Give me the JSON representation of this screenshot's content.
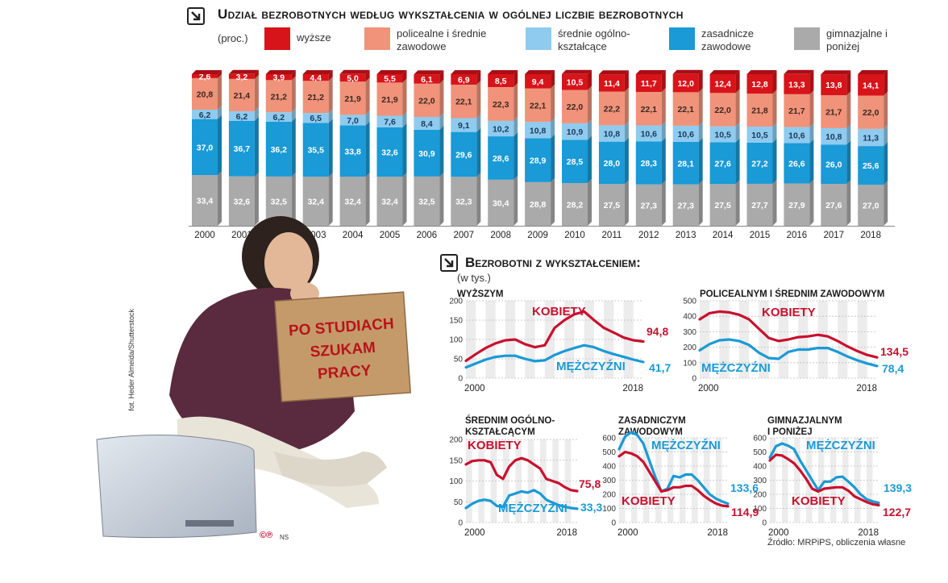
{
  "title": "Udział bezrobotnych według wykształcenia w ogólnej liczbie bezrobotnych",
  "unit": "(proc.)",
  "legend": [
    {
      "label": "wyższe",
      "color": "#d7141a"
    },
    {
      "label": "policealne i średnie zawodowe",
      "color": "#f0937a"
    },
    {
      "label": "średnie ogólno-kształcące",
      "color": "#8ecbef"
    },
    {
      "label": "zasadnicze zawodowe",
      "color": "#1a9ad6"
    },
    {
      "label": "gimnazjalne i poniżej",
      "color": "#aaaaaa"
    }
  ],
  "section2": {
    "title": "Bezrobotni z wykształceniem:",
    "unit": "(w tys.)"
  },
  "chart_data": [
    {
      "type": "bar",
      "stacked": true,
      "categories": [
        "2000",
        "2001",
        "2002",
        "2003",
        "2004",
        "2005",
        "2006",
        "2007",
        "2008",
        "2009",
        "2010",
        "2011",
        "2012",
        "2013",
        "2014",
        "2015",
        "2016",
        "2017",
        "2018"
      ],
      "series": [
        {
          "name": "gimnazjalne i poniżej",
          "color": "#aaaaaa",
          "values": [
            33.4,
            32.6,
            32.5,
            32.4,
            32.4,
            32.4,
            32.5,
            32.3,
            30.4,
            28.8,
            28.2,
            27.5,
            27.3,
            27.3,
            27.5,
            27.7,
            27.9,
            27.6,
            27.0
          ]
        },
        {
          "name": "zasadnicze zawodowe",
          "color": "#1a9ad6",
          "values": [
            37.0,
            36.7,
            36.2,
            35.5,
            33.8,
            32.6,
            30.9,
            29.6,
            28.6,
            28.9,
            28.5,
            28.0,
            28.3,
            28.1,
            27.6,
            27.2,
            26.6,
            26.0,
            25.6
          ]
        },
        {
          "name": "średnie ogólno-kształcące",
          "color": "#8ecbef",
          "values": [
            6.2,
            6.2,
            6.2,
            6.5,
            7.0,
            7.6,
            8.4,
            9.1,
            10.2,
            10.8,
            10.9,
            10.8,
            10.6,
            10.6,
            10.5,
            10.5,
            10.6,
            10.8,
            11.3
          ]
        },
        {
          "name": "policealne i średnie zawodowe",
          "color": "#f0937a",
          "values": [
            20.8,
            21.4,
            21.2,
            21.2,
            21.9,
            21.9,
            22.0,
            22.1,
            22.3,
            22.1,
            22.0,
            22.2,
            22.1,
            22.1,
            22.0,
            21.8,
            21.7,
            21.7,
            22.0
          ]
        },
        {
          "name": "wyższe",
          "color": "#d7141a",
          "values": [
            2.6,
            3.2,
            3.9,
            4.4,
            5.0,
            5.5,
            6.1,
            6.9,
            8.5,
            9.4,
            10.5,
            11.4,
            11.7,
            12.0,
            12.4,
            12.8,
            13.3,
            13.8,
            14.1
          ]
        }
      ],
      "value_labels": [
        [
          "33,4",
          "32,6",
          "32,5",
          "32,4",
          "32,4",
          "32,4",
          "32,5",
          "32,3",
          "30,4",
          "28,8",
          "28,2",
          "27,5",
          "27,3",
          "27,3",
          "27,5",
          "27,7",
          "27,9",
          "27,6",
          "27,0"
        ],
        [
          "37,0",
          "36,7",
          "36,2",
          "35,5",
          "33,8",
          "32,6",
          "30,9",
          "29,6",
          "28,6",
          "28,9",
          "28,5",
          "28,0",
          "28,3",
          "28,1",
          "27,6",
          "27,2",
          "26,6",
          "26,0",
          "25,6"
        ],
        [
          "6,2",
          "6,2",
          "6,2",
          "6,5",
          "7,0",
          "7,6",
          "8,4",
          "9,1",
          "10,2",
          "10,8",
          "10,9",
          "10,8",
          "10,6",
          "10,6",
          "10,5",
          "10,5",
          "10,6",
          "10,8",
          "11,3"
        ],
        [
          "20,8",
          "21,4",
          "21,2",
          "21,2",
          "21,9",
          "21,9",
          "22,0",
          "22,1",
          "22,3",
          "22,1",
          "22,0",
          "22,2",
          "22,1",
          "22,1",
          "22,0",
          "21,8",
          "21,7",
          "21,7",
          "22,0"
        ],
        [
          "2,6",
          "3,2",
          "3,9",
          "4,4",
          "5,0",
          "5,5",
          "6,1",
          "6,9",
          "8,5",
          "9,4",
          "10,5",
          "11,4",
          "11,7",
          "12,0",
          "12,4",
          "12,8",
          "13,3",
          "13,8",
          "14,1"
        ]
      ]
    },
    {
      "type": "line",
      "title": "wyższym",
      "ylim": [
        0,
        200
      ],
      "yticks": [
        0,
        50,
        100,
        150,
        200
      ],
      "x": [
        2000,
        2001,
        2002,
        2003,
        2004,
        2005,
        2006,
        2007,
        2008,
        2009,
        2010,
        2011,
        2012,
        2013,
        2014,
        2015,
        2016,
        2017,
        2018
      ],
      "xtick_labels": [
        "2000",
        "2018"
      ],
      "series": [
        {
          "name": "Kobiety",
          "color": "#c8102e",
          "values": [
            45,
            62,
            78,
            90,
            98,
            100,
            88,
            80,
            85,
            130,
            150,
            165,
            172,
            150,
            130,
            118,
            105,
            98,
            94.8
          ],
          "end_label": "94,8"
        },
        {
          "name": "Mężczyźni",
          "color": "#1a9ad6",
          "values": [
            28,
            38,
            48,
            55,
            58,
            58,
            50,
            44,
            46,
            60,
            70,
            78,
            85,
            80,
            70,
            62,
            55,
            48,
            41.7
          ],
          "end_label": "41,7"
        }
      ]
    },
    {
      "type": "line",
      "title": "policealnym i średnim zawodowym",
      "ylim": [
        0,
        500
      ],
      "yticks": [
        0,
        100,
        200,
        300,
        400,
        500
      ],
      "x": [
        2000,
        2001,
        2002,
        2003,
        2004,
        2005,
        2006,
        2007,
        2008,
        2009,
        2010,
        2011,
        2012,
        2013,
        2014,
        2015,
        2016,
        2017,
        2018
      ],
      "xtick_labels": [
        "2000",
        "2018"
      ],
      "series": [
        {
          "name": "Kobiety",
          "color": "#c8102e",
          "values": [
            380,
            420,
            430,
            425,
            410,
            380,
            320,
            260,
            240,
            250,
            265,
            270,
            280,
            270,
            240,
            205,
            175,
            150,
            134.5
          ],
          "end_label": "134,5"
        },
        {
          "name": "Mężczyźni",
          "color": "#1a9ad6",
          "values": [
            180,
            220,
            245,
            250,
            240,
            215,
            165,
            130,
            125,
            170,
            185,
            185,
            195,
            195,
            170,
            140,
            115,
            95,
            78.4
          ],
          "end_label": "78,4"
        }
      ]
    },
    {
      "type": "line",
      "title": "średnim ogólno-kształcącym",
      "ylim": [
        0,
        200
      ],
      "yticks": [
        0,
        50,
        100,
        150,
        200
      ],
      "x": [
        2000,
        2001,
        2002,
        2003,
        2004,
        2005,
        2006,
        2007,
        2008,
        2009,
        2010,
        2011,
        2012,
        2013,
        2014,
        2015,
        2016,
        2017,
        2018
      ],
      "xtick_labels": [
        "2000",
        "2018"
      ],
      "series": [
        {
          "name": "Kobiety",
          "color": "#c8102e",
          "values": [
            140,
            148,
            150,
            150,
            145,
            115,
            105,
            135,
            150,
            155,
            150,
            140,
            130,
            105,
            100,
            95,
            85,
            78,
            75.8
          ],
          "end_label": "75,8"
        },
        {
          "name": "Mężczyźni",
          "color": "#1a9ad6",
          "values": [
            35,
            45,
            52,
            55,
            52,
            40,
            38,
            65,
            70,
            75,
            72,
            78,
            70,
            55,
            48,
            42,
            38,
            35,
            33.3
          ],
          "end_label": "33,3"
        }
      ]
    },
    {
      "type": "line",
      "title": "zasadniczym zawodowym",
      "ylim": [
        0,
        600
      ],
      "yticks": [
        0,
        100,
        200,
        300,
        400,
        500,
        600
      ],
      "x": [
        2000,
        2001,
        2002,
        2003,
        2004,
        2005,
        2006,
        2007,
        2008,
        2009,
        2010,
        2011,
        2012,
        2013,
        2014,
        2015,
        2016,
        2017,
        2018
      ],
      "xtick_labels": [
        "2000",
        "2018"
      ],
      "series": [
        {
          "name": "Mężczyźni",
          "color": "#1a9ad6",
          "values": [
            520,
            610,
            640,
            620,
            560,
            440,
            320,
            220,
            240,
            330,
            320,
            340,
            340,
            300,
            250,
            200,
            170,
            150,
            133.6
          ],
          "end_label": "133,6"
        },
        {
          "name": "Kobiety",
          "color": "#c8102e",
          "values": [
            470,
            500,
            490,
            470,
            430,
            360,
            290,
            220,
            230,
            250,
            250,
            260,
            260,
            230,
            190,
            160,
            135,
            120,
            114.9
          ],
          "end_label": "114,9"
        }
      ]
    },
    {
      "type": "line",
      "title": "gimnazjalnym i poniżej",
      "ylim": [
        0,
        600
      ],
      "yticks": [
        0,
        100,
        200,
        300,
        400,
        500,
        600
      ],
      "x": [
        2000,
        2001,
        2002,
        2003,
        2004,
        2005,
        2006,
        2007,
        2008,
        2009,
        2010,
        2011,
        2012,
        2013,
        2014,
        2015,
        2016,
        2017,
        2018
      ],
      "xtick_labels": [
        "2000",
        "2018"
      ],
      "series": [
        {
          "name": "Mężczyźni",
          "color": "#1a9ad6",
          "values": [
            460,
            540,
            560,
            545,
            520,
            440,
            370,
            300,
            230,
            290,
            290,
            320,
            325,
            290,
            250,
            200,
            165,
            150,
            139.3
          ],
          "end_label": "139,3"
        },
        {
          "name": "Kobiety",
          "color": "#c8102e",
          "values": [
            440,
            480,
            475,
            450,
            420,
            370,
            310,
            240,
            220,
            240,
            245,
            250,
            250,
            225,
            185,
            165,
            145,
            130,
            122.7
          ],
          "end_label": "122,7"
        }
      ]
    }
  ],
  "line_labels": {
    "women": "KOBIETY",
    "men": "MĘŻCZYŹNI"
  },
  "sign_text": [
    "PO STUDIACH",
    "SZUKAM",
    "PRACY"
  ],
  "photo_credit": "fot. Heder Almeida/Shutterstock",
  "cp_mark": "©℗",
  "ns_mark": "NS",
  "source": "Źródło: MRPiPS, obliczenia własne"
}
